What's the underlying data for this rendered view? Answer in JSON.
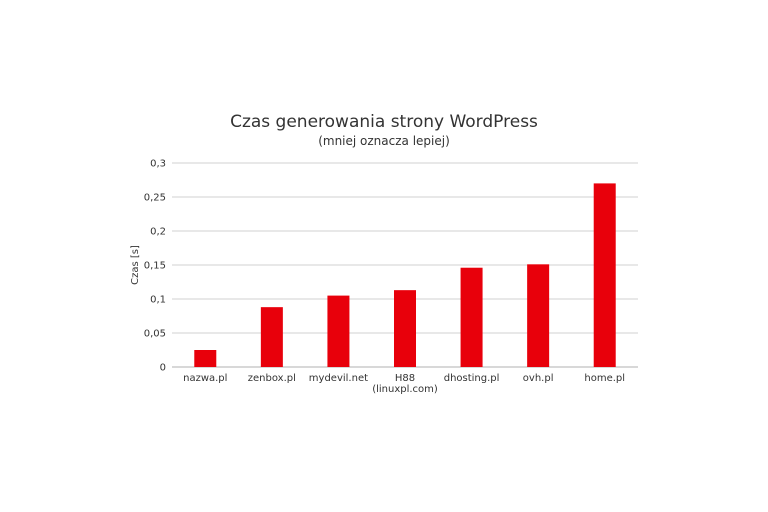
{
  "chart_data": {
    "type": "bar",
    "title": "Czas generowania strony WordPress",
    "subtitle": "(mniej oznacza  lepiej)",
    "ylabel": "Czas [s]",
    "xlabel": "",
    "ylim": [
      0,
      0.3
    ],
    "yticks": [
      "0",
      "0,05",
      "0,1",
      "0,15",
      "0,2",
      "0,25",
      "0,3"
    ],
    "categories": [
      [
        "nazwa.pl"
      ],
      [
        "zenbox.pl"
      ],
      [
        "mydevil.net"
      ],
      [
        "H88",
        "(linuxpl.com)"
      ],
      [
        "dhosting.pl"
      ],
      [
        "ovh.pl"
      ],
      [
        "home.pl"
      ]
    ],
    "values": [
      0.025,
      0.088,
      0.105,
      0.113,
      0.146,
      0.151,
      0.27
    ],
    "bar_color": "#e8000b",
    "grid": true,
    "legend": "none"
  }
}
